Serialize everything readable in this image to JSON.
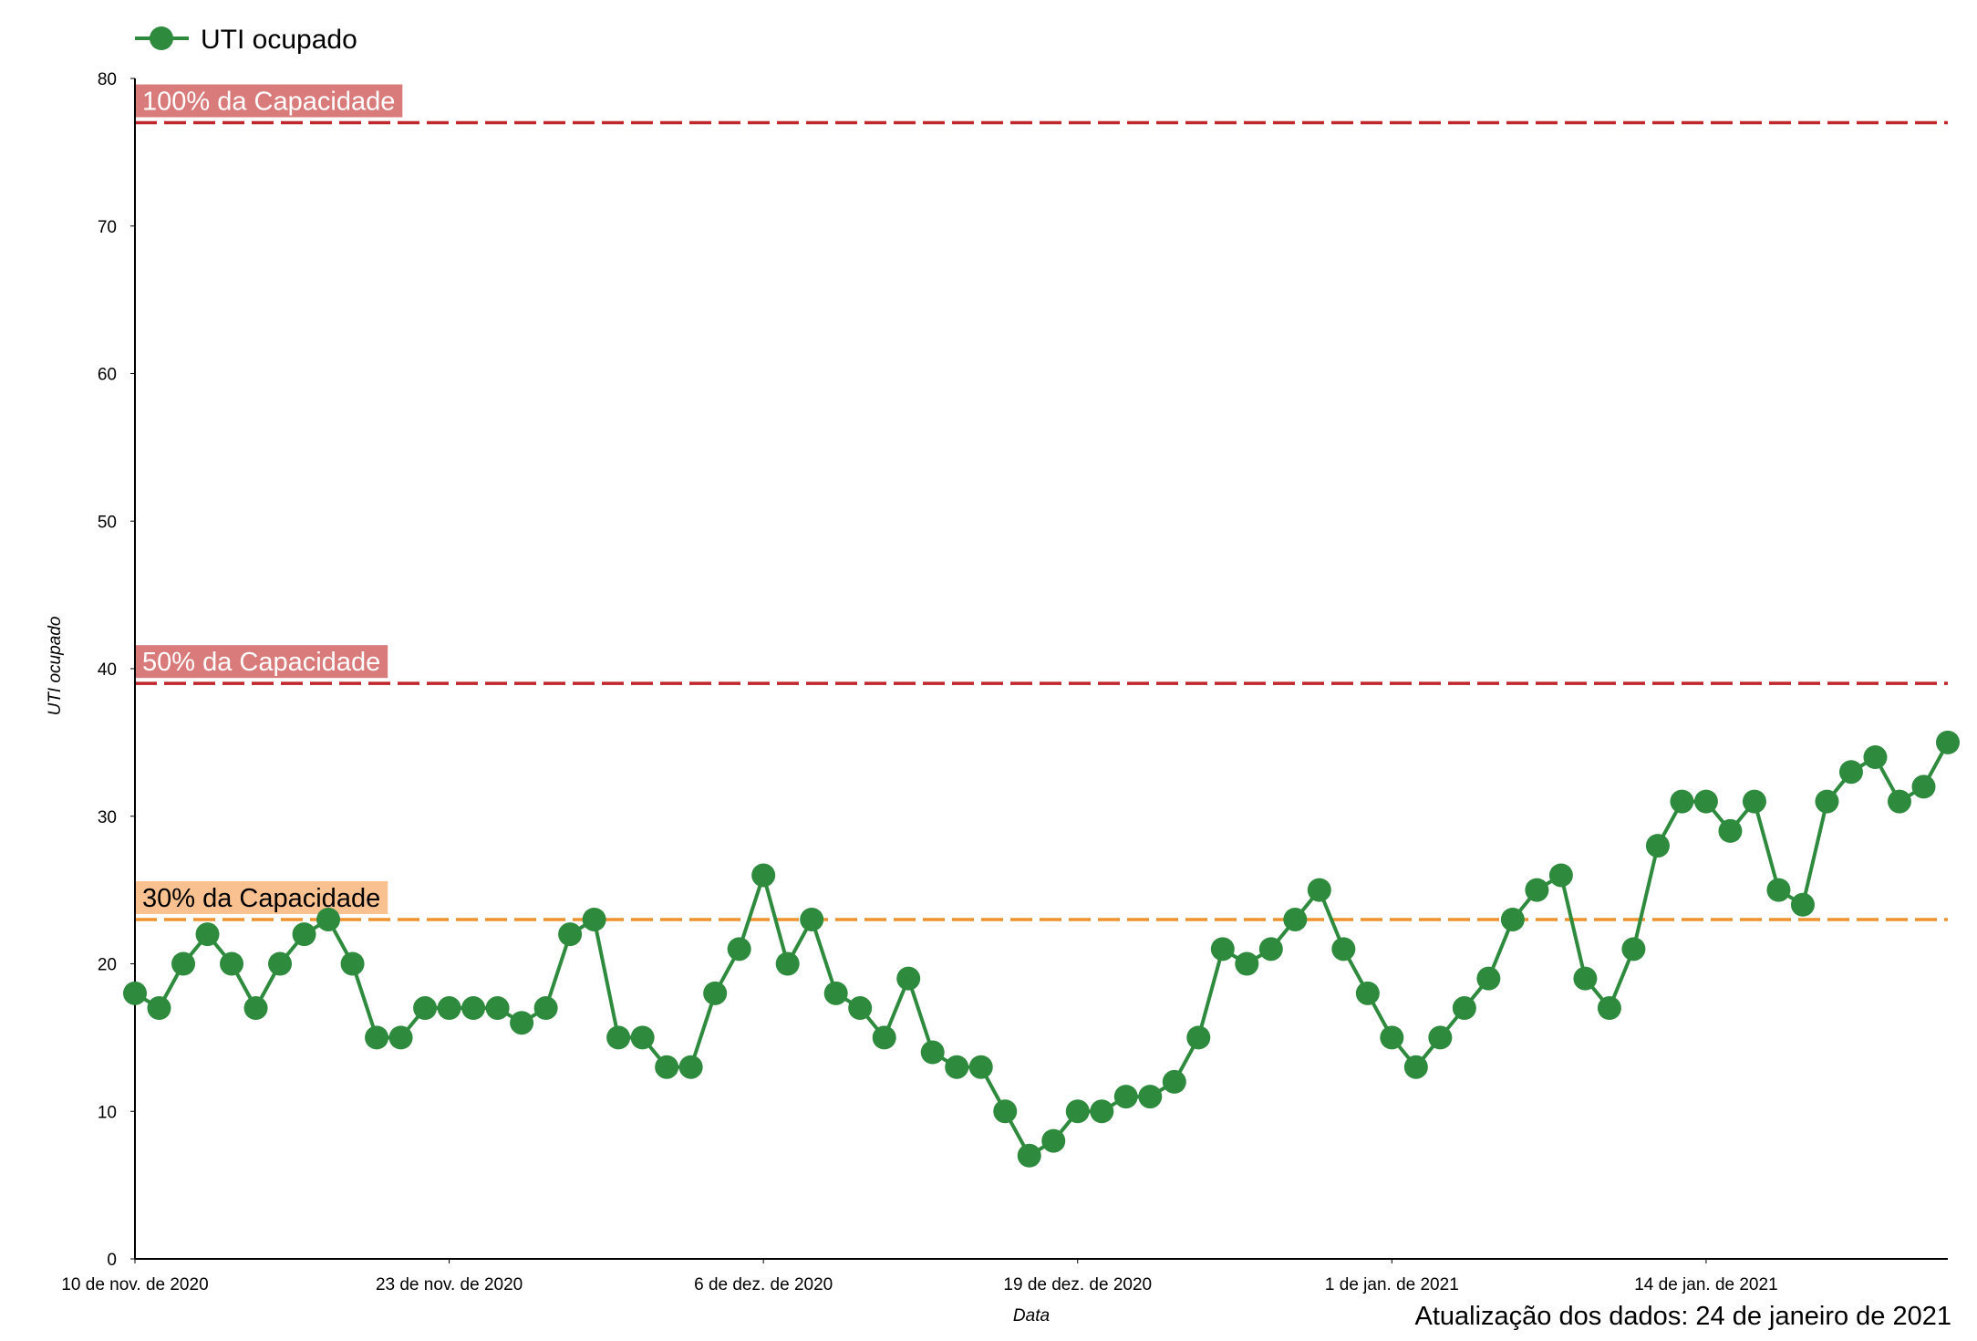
{
  "chart_data": {
    "type": "line",
    "legend": {
      "label": "UTI ocupado",
      "position": "top-left"
    },
    "xlabel": "Data",
    "ylabel": "UTI ocupado",
    "ylim": [
      0,
      80
    ],
    "yticks": [
      0,
      10,
      20,
      30,
      40,
      50,
      60,
      70,
      80
    ],
    "xlim": [
      "2020-11-10",
      "2021-01-24"
    ],
    "xticks": [
      {
        "date": "2020-11-10",
        "label": "10 de nov. de 2020"
      },
      {
        "date": "2020-11-23",
        "label": "23 de nov. de 2020"
      },
      {
        "date": "2020-12-06",
        "label": "6 de dez. de 2020"
      },
      {
        "date": "2020-12-19",
        "label": "19 de dez. de 2020"
      },
      {
        "date": "2021-01-01",
        "label": "1 de jan. de 2021"
      },
      {
        "date": "2021-01-14",
        "label": "14 de jan. de 2021"
      }
    ],
    "grid": false,
    "series": [
      {
        "name": "UTI ocupado",
        "color": "#2e8b3e",
        "start_date": "2020-11-10",
        "values": [
          18,
          17,
          20,
          22,
          20,
          17,
          20,
          22,
          23,
          20,
          15,
          15,
          17,
          17,
          17,
          17,
          16,
          17,
          22,
          23,
          15,
          15,
          13,
          13,
          18,
          21,
          26,
          20,
          23,
          18,
          17,
          15,
          19,
          14,
          13,
          13,
          10,
          7,
          8,
          10,
          10,
          11,
          11,
          12,
          15,
          21,
          20,
          21,
          23,
          25,
          21,
          18,
          15,
          13,
          15,
          17,
          19,
          23,
          25,
          26,
          19,
          17,
          21,
          28,
          31,
          31,
          29,
          31,
          25,
          24,
          31,
          33,
          34,
          31,
          32,
          35
        ]
      }
    ],
    "reference_lines": [
      {
        "label": "100% da Capacidade",
        "value": 77,
        "line_color": "#c0262b",
        "label_bg": "#d97b7b",
        "label_color": "#ffffff"
      },
      {
        "label": "50% da Capacidade",
        "value": 39,
        "line_color": "#c0262b",
        "label_bg": "#d97b7b",
        "label_color": "#ffffff"
      },
      {
        "label": "30% da Capacidade",
        "value": 23,
        "line_color": "#f0922f",
        "label_bg": "#f8c18f",
        "label_color": "#000000"
      }
    ]
  },
  "footer": {
    "update_text": "Atualização dos dados: 24 de janeiro de 2021"
  }
}
